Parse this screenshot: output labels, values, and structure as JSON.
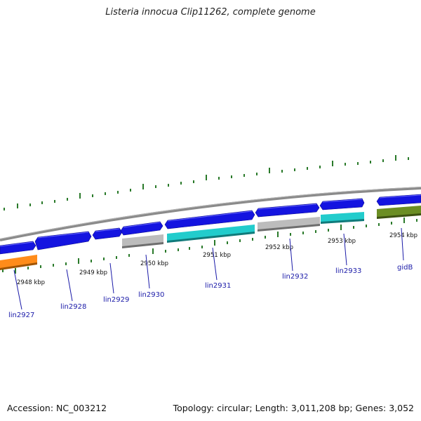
{
  "title": "Listeria innocua Clip11262, complete genome",
  "footer": {
    "accession": "Accession: NC_003212",
    "topology": "Topology: circular; Length: 3,011,208 bp; Genes: 3,052"
  },
  "colors": {
    "backbone": "#888888",
    "forward_gene": "#1414e0",
    "cyan_gene": "#22cccc",
    "gray_gene": "#b8b8b8",
    "orange_gene": "#ff8c1a",
    "olive_gene": "#6b8e23",
    "ticks": "#2a7a2a",
    "labels": "#1a1aa8"
  },
  "ticks": [
    {
      "label": "2948 kbp"
    },
    {
      "label": "2949 kbp"
    },
    {
      "label": "2950 kbp"
    },
    {
      "label": "2951 kbp"
    },
    {
      "label": "2952 kbp"
    },
    {
      "label": "2953 kbp"
    },
    {
      "label": "2954 kbp"
    }
  ],
  "genes": [
    {
      "name": "lin2927"
    },
    {
      "name": "lin2928"
    },
    {
      "name": "lin2929"
    },
    {
      "name": "lin2930"
    },
    {
      "name": "lin2931"
    },
    {
      "name": "lin2932"
    },
    {
      "name": "lin2933"
    },
    {
      "name": "gidB"
    }
  ]
}
